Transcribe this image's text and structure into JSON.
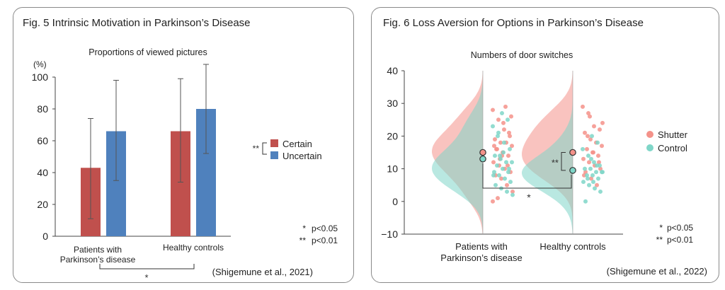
{
  "chart_data": [
    {
      "type": "bar",
      "fig_title": "Fig. 5  Intrinsic Motivation in Parkinson’s Disease",
      "title": "Proportions of viewed pictures",
      "y_unit": "(%)",
      "ylim": [
        0,
        100
      ],
      "yticks": [
        "0",
        "20",
        "40",
        "60",
        "80",
        "100"
      ],
      "categories": [
        "Patients with Parkinson’s disease",
        "Healthy controls"
      ],
      "category_lines": [
        [
          "Patients with",
          "Parkinson’s disease"
        ],
        [
          "Healthy controls"
        ]
      ],
      "series": [
        {
          "name": "Certain",
          "color": "#c0504d",
          "values": [
            43,
            66
          ],
          "err_low": [
            11,
            34
          ],
          "err_high": [
            74,
            99
          ]
        },
        {
          "name": "Uncertain",
          "color": "#4f81bd",
          "values": [
            66,
            80
          ],
          "err_low": [
            35,
            52
          ],
          "err_high": [
            98,
            108
          ]
        }
      ],
      "legend_sig": "**",
      "group_sig": "*",
      "sig_notes": [
        {
          "mark": "*",
          "text": "p<0.05"
        },
        {
          "mark": "**",
          "text": "p<0.01"
        }
      ],
      "citation": "(Shigemune et al., 2021)"
    },
    {
      "type": "raincloud",
      "fig_title": "Fig. 6 Loss Aversion for Options in Parkinson’s Disease",
      "title": "Numbers of door switches",
      "ylim": [
        -10,
        40
      ],
      "yticks": [
        "−10",
        "0",
        "10",
        "20",
        "30",
        "40"
      ],
      "categories": [
        "Patients with Parkinson’s disease",
        "Healthy controls"
      ],
      "category_lines": [
        [
          "Patients with",
          "Parkinson’s disease"
        ],
        [
          "Healthy controls"
        ]
      ],
      "series": [
        {
          "name": "Shutter",
          "color": "#f4928a",
          "means": [
            15,
            15
          ],
          "points": [
            [
              28,
              25,
              22,
              20,
              19,
              18,
              18,
              17,
              16,
              15,
              14,
              12,
              11,
              10,
              9,
              8,
              7,
              5,
              3,
              1,
              24,
              21,
              17,
              13,
              29,
              26,
              16,
              14,
              11,
              0
            ],
            [
              29,
              27,
              23,
              22,
              21,
              19,
              18,
              17,
              16,
              15,
              14,
              13,
              12,
              11,
              10,
              9,
              7,
              5,
              24,
              20,
              15,
              12,
              8,
              26
            ]
          ]
        },
        {
          "name": "Control",
          "color": "#7fd6c8",
          "means": [
            13,
            9.5
          ],
          "points": [
            [
              27,
              25,
              23,
              21,
              18,
              16,
              14,
              13,
              12,
              12,
              11,
              10,
              9,
              8,
              8,
              7,
              6,
              5,
              4,
              3,
              2,
              20,
              15,
              10,
              9,
              14
            ],
            [
              20,
              18,
              16,
              14,
              12,
              11,
              10,
              10,
              9,
              9,
              8,
              8,
              7,
              6,
              5,
              4,
              3,
              0,
              13,
              11,
              9,
              7,
              6
            ]
          ]
        }
      ],
      "legend_sig": "**",
      "group_sig": "*",
      "sig_notes": [
        {
          "mark": "*",
          "text": "p<0.05"
        },
        {
          "mark": "**",
          "text": "p<0.01"
        }
      ],
      "citation": "(Shigemune et al., 2022)"
    }
  ]
}
